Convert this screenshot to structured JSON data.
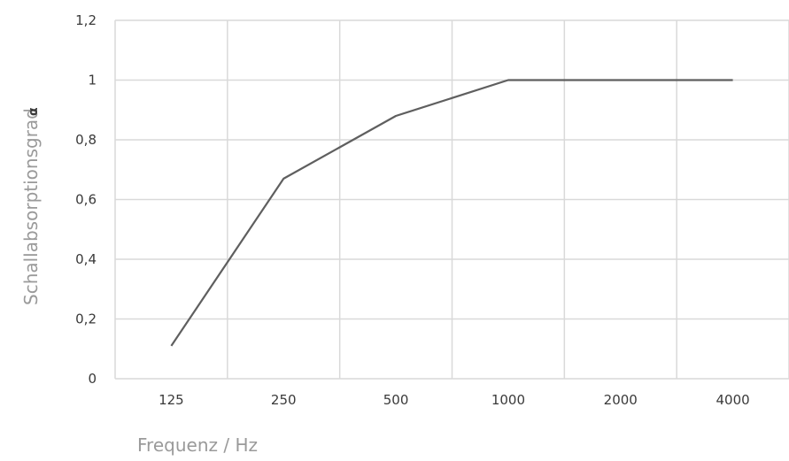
{
  "chart_data": {
    "type": "line",
    "categories": [
      "125",
      "250",
      "500",
      "1000",
      "2000",
      "4000"
    ],
    "series": [
      {
        "values": [
          0.11,
          0.67,
          0.88,
          1.0,
          1.0,
          1.0
        ]
      }
    ],
    "y_ticks": [
      "0",
      "0,2",
      "0,4",
      "0,6",
      "0,8",
      "1",
      "1,2"
    ],
    "ylim": [
      0,
      1.2
    ],
    "xlabel": "Frequenz / Hz",
    "ylabel": "Schallabsorptionsgrad",
    "ylabel_symbol": "α",
    "grid": true,
    "line_color": "#5f5f5f",
    "grid_color": "#d9d9d9"
  }
}
